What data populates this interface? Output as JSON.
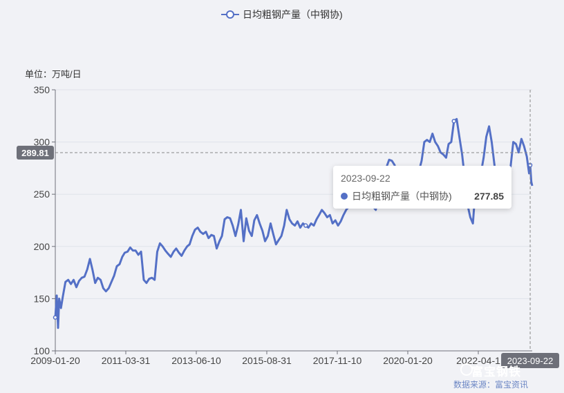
{
  "legend": {
    "label": "日均粗钢产量（中钢协)"
  },
  "unit_label": "单位：万吨/日",
  "pointer": {
    "y_label": "289.81",
    "x_label": "2023-09-22"
  },
  "tooltip": {
    "date": "2023-09-22",
    "series": "日均粗钢产量（中钢协)",
    "value": "277.85"
  },
  "watermark": "数据来源：富宝资讯",
  "logo": "富宝钢铁",
  "colors": {
    "line": "#5470c6",
    "background": "#f1f2f6",
    "pointer_label": "#6e7079"
  },
  "chart_data": {
    "type": "line",
    "series": [
      {
        "name": "日均粗钢产量（中钢协)",
        "points": [
          [
            "2009-01-20",
            132
          ],
          [
            "2009-02-05",
            153
          ],
          [
            "2009-02-20",
            122
          ],
          [
            "2009-03-05",
            150
          ],
          [
            "2009-03-25",
            141
          ],
          [
            "2009-04-15",
            152
          ],
          [
            "2009-05-15",
            166
          ],
          [
            "2009-06-15",
            168
          ],
          [
            "2009-07-15",
            164
          ],
          [
            "2009-08-15",
            168
          ],
          [
            "2009-09-15",
            161
          ],
          [
            "2009-10-15",
            167
          ],
          [
            "2009-11-15",
            170
          ],
          [
            "2009-12-15",
            171
          ],
          [
            "2010-01-15",
            178
          ],
          [
            "2010-02-15",
            188
          ],
          [
            "2010-03-15",
            178
          ],
          [
            "2010-04-15",
            165
          ],
          [
            "2010-05-15",
            170
          ],
          [
            "2010-06-15",
            168
          ],
          [
            "2010-07-15",
            160
          ],
          [
            "2010-08-15",
            157
          ],
          [
            "2010-09-15",
            160
          ],
          [
            "2010-10-15",
            166
          ],
          [
            "2010-11-15",
            172
          ],
          [
            "2010-12-15",
            181
          ],
          [
            "2011-01-15",
            183
          ],
          [
            "2011-02-15",
            190
          ],
          [
            "2011-03-15",
            194
          ],
          [
            "2011-04-15",
            195
          ],
          [
            "2011-05-15",
            199
          ],
          [
            "2011-06-15",
            196
          ],
          [
            "2011-07-15",
            196
          ],
          [
            "2011-08-15",
            192
          ],
          [
            "2011-09-15",
            195
          ],
          [
            "2011-10-15",
            168
          ],
          [
            "2011-11-15",
            165
          ],
          [
            "2011-12-15",
            169
          ],
          [
            "2012-01-15",
            170
          ],
          [
            "2012-02-15",
            168
          ],
          [
            "2012-03-15",
            195
          ],
          [
            "2012-04-15",
            203
          ],
          [
            "2012-05-15",
            200
          ],
          [
            "2012-06-15",
            196
          ],
          [
            "2012-07-15",
            193
          ],
          [
            "2012-08-15",
            190
          ],
          [
            "2012-09-15",
            195
          ],
          [
            "2012-10-15",
            198
          ],
          [
            "2012-11-15",
            194
          ],
          [
            "2012-12-15",
            191
          ],
          [
            "2013-01-15",
            196
          ],
          [
            "2013-02-15",
            200
          ],
          [
            "2013-03-15",
            202
          ],
          [
            "2013-04-15",
            210
          ],
          [
            "2013-05-15",
            216
          ],
          [
            "2013-06-15",
            218
          ],
          [
            "2013-07-15",
            214
          ],
          [
            "2013-08-15",
            212
          ],
          [
            "2013-09-15",
            214
          ],
          [
            "2013-10-15",
            208
          ],
          [
            "2013-11-15",
            211
          ],
          [
            "2013-12-15",
            210
          ],
          [
            "2014-01-15",
            198
          ],
          [
            "2014-02-15",
            205
          ],
          [
            "2014-03-15",
            210
          ],
          [
            "2014-04-15",
            226
          ],
          [
            "2014-05-15",
            228
          ],
          [
            "2014-06-15",
            227
          ],
          [
            "2014-07-15",
            220
          ],
          [
            "2014-08-15",
            210
          ],
          [
            "2014-09-15",
            221
          ],
          [
            "2014-10-15",
            235
          ],
          [
            "2014-11-15",
            205
          ],
          [
            "2014-12-15",
            227
          ],
          [
            "2015-01-15",
            215
          ],
          [
            "2015-02-15",
            210
          ],
          [
            "2015-03-15",
            225
          ],
          [
            "2015-04-15",
            230
          ],
          [
            "2015-05-15",
            222
          ],
          [
            "2015-06-15",
            215
          ],
          [
            "2015-07-15",
            205
          ],
          [
            "2015-08-15",
            210
          ],
          [
            "2015-09-15",
            222
          ],
          [
            "2015-10-15",
            212
          ],
          [
            "2015-11-15",
            202
          ],
          [
            "2015-12-15",
            206
          ],
          [
            "2016-01-15",
            210
          ],
          [
            "2016-02-15",
            220
          ],
          [
            "2016-03-15",
            235
          ],
          [
            "2016-04-15",
            226
          ],
          [
            "2016-05-15",
            222
          ],
          [
            "2016-06-15",
            220
          ],
          [
            "2016-07-15",
            224
          ],
          [
            "2016-08-15",
            218
          ],
          [
            "2016-09-15",
            222
          ],
          [
            "2016-10-15",
            220
          ],
          [
            "2016-11-15",
            218
          ],
          [
            "2016-12-15",
            222
          ],
          [
            "2017-01-15",
            220
          ],
          [
            "2017-02-15",
            226
          ],
          [
            "2017-03-15",
            230
          ],
          [
            "2017-04-15",
            235
          ],
          [
            "2017-05-15",
            232
          ],
          [
            "2017-06-15",
            228
          ],
          [
            "2017-07-15",
            230
          ],
          [
            "2017-08-15",
            222
          ],
          [
            "2017-09-15",
            225
          ],
          [
            "2017-10-15",
            220
          ],
          [
            "2017-11-15",
            224
          ],
          [
            "2017-12-15",
            230
          ],
          [
            "2018-01-15",
            235
          ],
          [
            "2018-02-15",
            238
          ],
          [
            "2018-03-15",
            245
          ],
          [
            "2018-04-15",
            252
          ],
          [
            "2018-05-15",
            256
          ],
          [
            "2018-06-15",
            262
          ],
          [
            "2018-07-15",
            268
          ],
          [
            "2018-08-15",
            262
          ],
          [
            "2018-09-15",
            252
          ],
          [
            "2018-10-15",
            246
          ],
          [
            "2018-11-15",
            238
          ],
          [
            "2018-12-15",
            235
          ],
          [
            "2019-01-15",
            250
          ],
          [
            "2019-02-15",
            262
          ],
          [
            "2019-03-15",
            272
          ],
          [
            "2019-04-15",
            276
          ],
          [
            "2019-05-15",
            283
          ],
          [
            "2019-06-15",
            282
          ],
          [
            "2019-07-15",
            278
          ],
          [
            "2019-08-15",
            268
          ],
          [
            "2019-09-15",
            262
          ],
          [
            "2019-10-15",
            260
          ],
          [
            "2019-11-15",
            265
          ],
          [
            "2019-12-15",
            272
          ],
          [
            "2020-01-15",
            270
          ],
          [
            "2020-02-15",
            260
          ],
          [
            "2020-03-15",
            262
          ],
          [
            "2020-04-15",
            272
          ],
          [
            "2020-05-15",
            282
          ],
          [
            "2020-06-15",
            300
          ],
          [
            "2020-07-15",
            302
          ],
          [
            "2020-08-15",
            300
          ],
          [
            "2020-09-15",
            308
          ],
          [
            "2020-10-15",
            300
          ],
          [
            "2020-11-15",
            296
          ],
          [
            "2020-12-15",
            290
          ],
          [
            "2021-01-15",
            288
          ],
          [
            "2021-02-15",
            285
          ],
          [
            "2021-03-15",
            298
          ],
          [
            "2021-04-15",
            300
          ],
          [
            "2021-05-15",
            320
          ],
          [
            "2021-06-15",
            322
          ],
          [
            "2021-07-15",
            305
          ],
          [
            "2021-08-15",
            288
          ],
          [
            "2021-09-15",
            265
          ],
          [
            "2021-10-15",
            240
          ],
          [
            "2021-11-15",
            228
          ],
          [
            "2021-12-15",
            222
          ],
          [
            "2022-01-15",
            258
          ],
          [
            "2022-02-15",
            262
          ],
          [
            "2022-03-15",
            270
          ],
          [
            "2022-04-15",
            285
          ],
          [
            "2022-05-15",
            305
          ],
          [
            "2022-06-15",
            315
          ],
          [
            "2022-07-15",
            300
          ],
          [
            "2022-08-15",
            278
          ],
          [
            "2022-09-15",
            262
          ],
          [
            "2022-10-15",
            260
          ],
          [
            "2022-11-15",
            250
          ],
          [
            "2022-12-15",
            245
          ],
          [
            "2023-01-15",
            262
          ],
          [
            "2023-02-15",
            278
          ],
          [
            "2023-03-15",
            300
          ],
          [
            "2023-04-15",
            298
          ],
          [
            "2023-05-15",
            290
          ],
          [
            "2023-06-15",
            303
          ],
          [
            "2023-07-15",
            296
          ],
          [
            "2023-08-15",
            286
          ],
          [
            "2023-09-10",
            270
          ],
          [
            "2023-09-22",
            277.85
          ],
          [
            "2023-10-05",
            262
          ],
          [
            "2023-10-15",
            258
          ]
        ]
      }
    ],
    "x_axis": {
      "type": "date",
      "range": [
        "2009-01-20",
        "2023-10-15"
      ],
      "tick_labels": [
        "2009-01-20",
        "2011-03-31",
        "2013-06-10",
        "2015-08-31",
        "2017-11-10",
        "2020-01-20",
        "2022-04-1"
      ]
    },
    "y_axis": {
      "range": [
        100,
        350
      ],
      "ticks": [
        100,
        150,
        200,
        250,
        300,
        350
      ]
    },
    "grid": true,
    "legend_position": "top-center"
  }
}
